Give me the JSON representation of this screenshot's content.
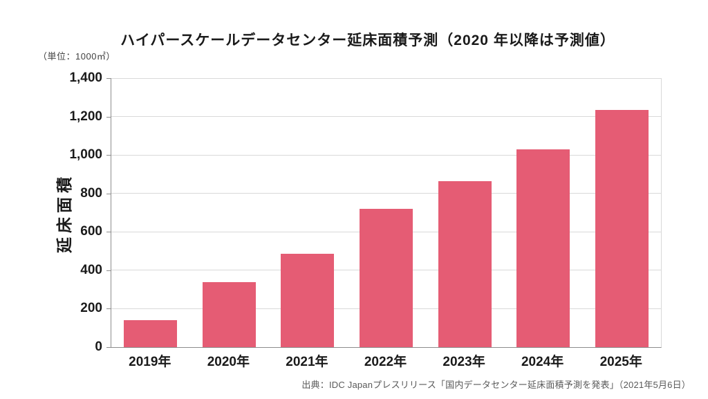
{
  "title": "ハイパースケールデータセンター延床面積予測（2020 年以降は予測値）",
  "unit_label": "（単位：1000㎡）",
  "source": "出典：IDC Japanプレスリリース「国内データセンター延床面積予測を発表」（2021年5月6日）",
  "colors": {
    "bar": "#e55c74",
    "grid": "#d9d9d9",
    "axis": "#8c8c8c",
    "text": "#1a1a1a",
    "source_text": "#595959"
  },
  "chart_data": {
    "type": "bar",
    "title": "ハイパースケールデータセンター延床面積予測（2020 年以降は予測値）",
    "subtitle": "2020年以降は予測値",
    "unit": "1000㎡",
    "categories": [
      "2019年",
      "2020年",
      "2021年",
      "2022年",
      "2023年",
      "2024年",
      "2025年"
    ],
    "values": [
      140,
      340,
      485,
      720,
      865,
      1030,
      1235
    ],
    "xlabel": "",
    "ylabel": "延床面積",
    "ylim": [
      0,
      1400
    ],
    "ytick_step": 200,
    "ytick_labels": [
      "0",
      "200",
      "400",
      "600",
      "800",
      "1,000",
      "1,200",
      "1,400"
    ],
    "grid": true,
    "legend": false,
    "bar_color": "#e55c74"
  }
}
